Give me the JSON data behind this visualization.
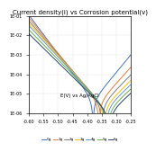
{
  "title": "Current density(i) vs Corrosion potential(v)",
  "annotation": "E(V) vs Ag/AgCl",
  "xlim": [
    -0.6,
    -0.25
  ],
  "xticks": [
    -0.6,
    -0.55,
    -0.5,
    -0.45,
    -0.4,
    -0.35,
    -0.3,
    -0.25
  ],
  "ylim_log": [
    1e-06,
    0.1
  ],
  "yticks": [
    1e-06,
    1e-05,
    0.0001,
    0.001,
    0.01,
    0.1
  ],
  "ytick_labels": [
    "1E-06",
    "1E-05",
    "1E-04",
    "1E-03",
    "1E-02",
    "1E-01"
  ],
  "xtick_labels": [
    "-0.60",
    "-0.55",
    "-0.50",
    "-0.45",
    "-0.40",
    "-0.35",
    "-0.30",
    "-0.25"
  ],
  "series": [
    {
      "label": "0g",
      "color": "#4472C4",
      "ecorr": -0.38,
      "icorr": 4.5e-06,
      "ba": 0.055,
      "bc": 0.05
    },
    {
      "label": "1g",
      "color": "#ED7D31",
      "ecorr": -0.36,
      "icorr": 3.5e-06,
      "ba": 0.06,
      "bc": 0.055
    },
    {
      "label": "2g",
      "color": "#808080",
      "ecorr": -0.35,
      "icorr": 2.8e-06,
      "ba": 0.065,
      "bc": 0.058
    },
    {
      "label": "3g",
      "color": "#FFC000",
      "ecorr": -0.342,
      "icorr": 2.2e-06,
      "ba": 0.068,
      "bc": 0.06
    },
    {
      "label": "4g",
      "color": "#5B9BD5",
      "ecorr": -0.336,
      "icorr": 1.8e-06,
      "ba": 0.07,
      "bc": 0.062
    },
    {
      "label": "5g",
      "color": "#70AD47",
      "ecorr": -0.33,
      "icorr": 1.4e-06,
      "ba": 0.072,
      "bc": 0.065
    },
    {
      "label": "6g",
      "color": "#264478",
      "ecorr": -0.325,
      "icorr": 1.1e-06,
      "ba": 0.075,
      "bc": 0.068
    }
  ],
  "background_color": "#FFFFFF",
  "title_fontsize": 5.0,
  "tick_fontsize": 3.5,
  "legend_fontsize": 3.0,
  "annotation_fontsize": 4.0,
  "linewidth": 0.7
}
